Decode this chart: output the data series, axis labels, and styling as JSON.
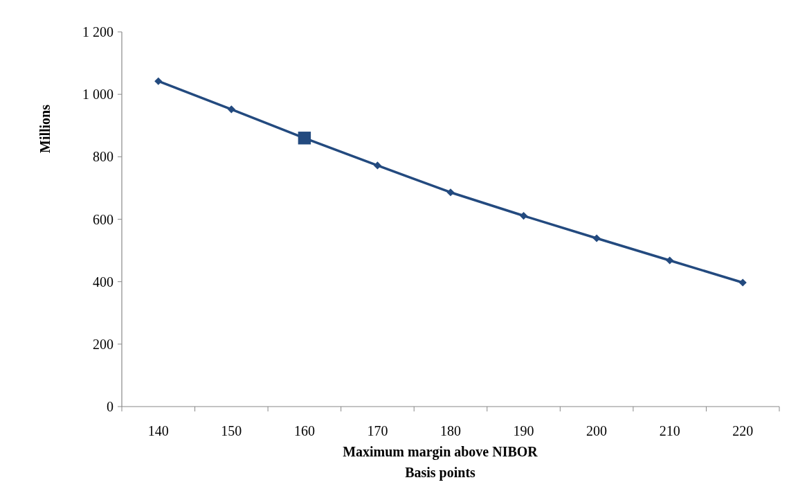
{
  "chart_data": {
    "type": "line",
    "xlabel": "Maximum margin above NIBOR\nBasis points",
    "ylabel": "Millions",
    "categories": [
      "140",
      "150",
      "160",
      "170",
      "180",
      "190",
      "200",
      "210",
      "220"
    ],
    "series": [
      {
        "color": "#234a7f",
        "marker": "diamond",
        "values": [
          1042,
          952,
          860,
          772,
          686,
          611,
          539,
          468,
          397
        ]
      },
      {
        "type": "scatter",
        "color": "#234a7f",
        "marker": "square",
        "x": [
          "160"
        ],
        "values": [
          860
        ]
      }
    ],
    "ylim": [
      0,
      1200
    ],
    "yticks": [
      0,
      200,
      400,
      600,
      800,
      {
        "value": 1000,
        "label": "1 000"
      },
      {
        "value": 1200,
        "label": "1 200"
      }
    ],
    "grid": false
  }
}
